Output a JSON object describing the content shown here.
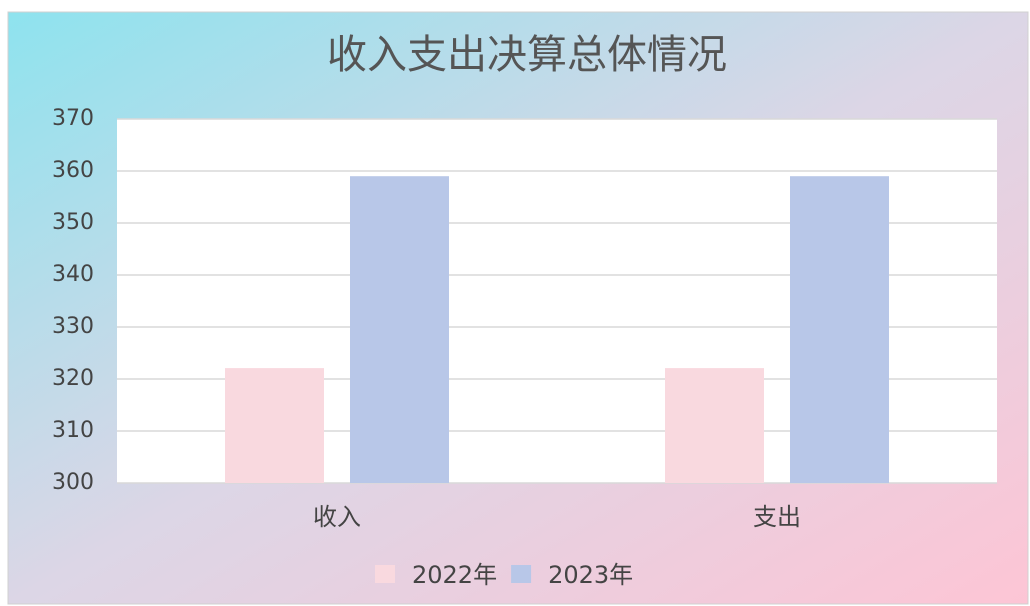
{
  "chart_data": {
    "type": "bar",
    "title": "收入支出决算总体情况",
    "categories": [
      "收入",
      "支出"
    ],
    "series": [
      {
        "name": "2022年",
        "color": "#f9d9df",
        "values": [
          322.1,
          322.1
        ]
      },
      {
        "name": "2023年",
        "color": "#b8c7e8",
        "values": [
          359,
          359
        ]
      }
    ],
    "ylim": [
      300,
      370
    ],
    "yticks": [
      300,
      310,
      320,
      330,
      340,
      350,
      360,
      370
    ],
    "grid": true,
    "legend": "bottom"
  }
}
